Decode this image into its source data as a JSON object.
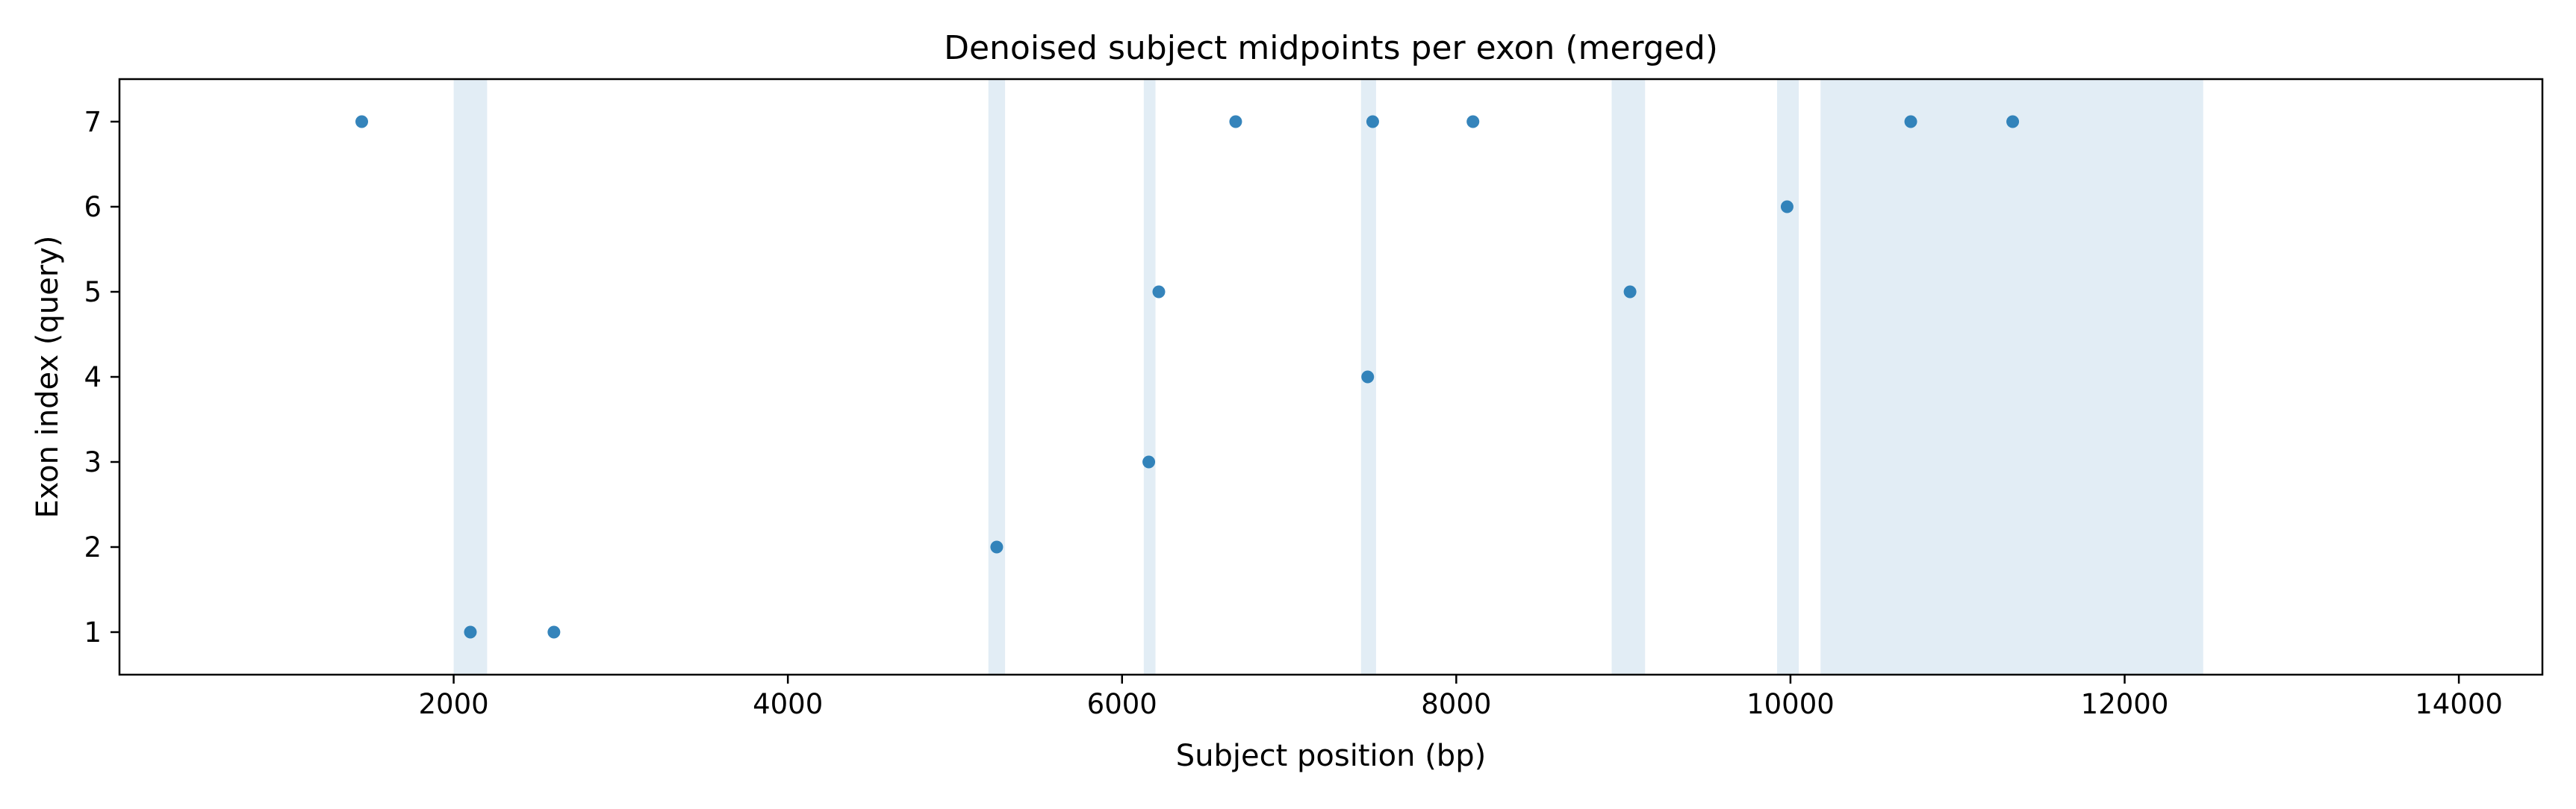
{
  "chart_data": {
    "type": "scatter",
    "title": "Denoised subject midpoints per exon (merged)",
    "xlabel": "Subject position (bp)",
    "ylabel": "Exon index (query)",
    "xlim": [
      0,
      14500
    ],
    "ylim": [
      0.5,
      7.5
    ],
    "xticks": [
      2000,
      4000,
      6000,
      8000,
      10000,
      12000,
      14000
    ],
    "yticks": [
      1,
      2,
      3,
      4,
      5,
      6,
      7
    ],
    "grid": false,
    "point_color": "#1f77b4",
    "band_color": "#c6dcec",
    "bands": [
      {
        "start": 2000,
        "end": 2200
      },
      {
        "start": 5200,
        "end": 5300
      },
      {
        "start": 6130,
        "end": 6200
      },
      {
        "start": 7430,
        "end": 7520
      },
      {
        "start": 8930,
        "end": 9130
      },
      {
        "start": 9920,
        "end": 10050
      },
      {
        "start": 10180,
        "end": 12470
      }
    ],
    "points": [
      {
        "x": 1450,
        "y": 7
      },
      {
        "x": 2100,
        "y": 1
      },
      {
        "x": 2600,
        "y": 1
      },
      {
        "x": 5250,
        "y": 2
      },
      {
        "x": 6160,
        "y": 3
      },
      {
        "x": 6220,
        "y": 5
      },
      {
        "x": 6680,
        "y": 7
      },
      {
        "x": 7470,
        "y": 4
      },
      {
        "x": 7500,
        "y": 7
      },
      {
        "x": 8100,
        "y": 7
      },
      {
        "x": 9040,
        "y": 5
      },
      {
        "x": 9980,
        "y": 6
      },
      {
        "x": 10720,
        "y": 7
      },
      {
        "x": 11330,
        "y": 7
      }
    ]
  }
}
